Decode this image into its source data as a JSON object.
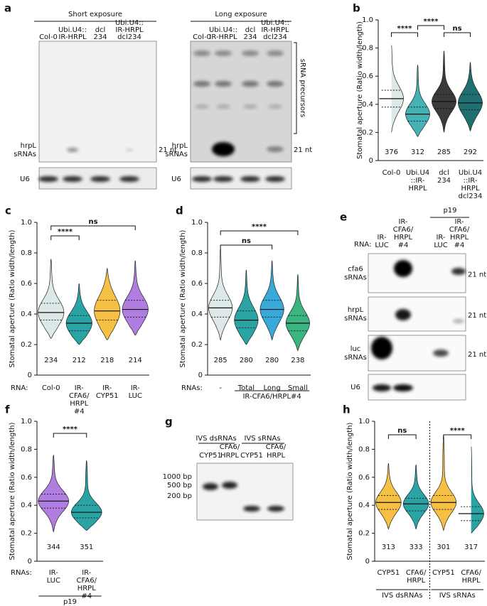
{
  "a": {
    "panel": "a",
    "short": {
      "header": "Short exposure",
      "lanes": [
        [
          "Col-0"
        ],
        [
          "Ubi.U4::",
          "IR-HRPL"
        ],
        [
          "dcl",
          "234"
        ],
        [
          "Ubi.U4::",
          "IR-HRPL",
          "dcl234"
        ]
      ],
      "srnas": [
        "hrpL",
        "sRNAs"
      ],
      "size": "21 nt",
      "loading": "U6"
    },
    "long": {
      "header": "Long exposure",
      "lanes": [
        [
          "Col-0"
        ],
        [
          "Ubi.U4::",
          "IR-HRPL"
        ],
        [
          "dcl",
          "234"
        ],
        [
          "Ubi.U4::",
          "IR-HRPL",
          "dcl234"
        ]
      ],
      "srnas": [
        "hrpL",
        "sRNAs"
      ],
      "size": "21 nt",
      "loading": "U6",
      "precursors": "sRNA precursors"
    }
  },
  "e": {
    "panel": "e",
    "rna": "RNA:",
    "p19": "p19",
    "lanes": [
      [
        "IR-",
        "LUC"
      ],
      [
        "IR-",
        "CFA6/",
        "HRPL",
        "#4"
      ],
      [
        "IR-",
        "LUC"
      ],
      [
        "IR-",
        "CFA6/",
        "HRPL",
        "#4"
      ]
    ],
    "rows": [
      [
        "cfa6",
        "sRNAs"
      ],
      [
        "hrpL",
        "sRNAs"
      ],
      [
        "luc",
        "sRNAs"
      ],
      [
        "U6"
      ]
    ],
    "size": "21 nt"
  },
  "g": {
    "panel": "g",
    "groups": [
      "IVS dsRNAs",
      "IVS sRNAs"
    ],
    "lanes": [
      [
        "CYP51"
      ],
      [
        "CFA6/",
        "HRPL"
      ],
      [
        "CYP51"
      ],
      [
        "CFA6/",
        "HRPL"
      ]
    ],
    "markers": [
      "1000 bp",
      "500 bp",
      "200 bp"
    ]
  },
  "chart_data": [
    {
      "type": "violin",
      "panel": "b",
      "ylabel": "Stomatal aperture (Ratio width/length)",
      "ylim": [
        0,
        1
      ],
      "yticks": [
        0,
        0.2,
        0.4,
        0.6,
        0.8,
        {
          "value": 1,
          "label": "1.0"
        }
      ],
      "categories": [
        [
          "Col-0"
        ],
        [
          "Ubi.U4",
          "::IR-",
          "HRPL"
        ],
        [
          "dcl",
          "234"
        ],
        [
          "Ubi.U4",
          "::IR-",
          "HRPL",
          "dcl234"
        ]
      ],
      "n": [
        376,
        312,
        285,
        292
      ],
      "violins": [
        {
          "color": "#dde9e8",
          "min": 0.2,
          "q1": 0.38,
          "median": 0.44,
          "q3": 0.5,
          "max": 0.83
        },
        {
          "color": "#45b3b5",
          "min": 0.17,
          "q1": 0.28,
          "median": 0.33,
          "q3": 0.38,
          "max": 0.68
        },
        {
          "color": "#3a3a3a",
          "min": 0.2,
          "q1": 0.37,
          "median": 0.42,
          "q3": 0.47,
          "max": 0.78
        },
        {
          "color": "#1f6e70",
          "min": 0.21,
          "q1": 0.36,
          "median": 0.41,
          "q3": 0.47,
          "max": 0.7
        }
      ],
      "significance": [
        "****",
        "****",
        "ns"
      ]
    },
    {
      "type": "violin",
      "panel": "c",
      "ylabel": "Stomatal aperture (Ratio width/length)",
      "ylim": [
        0,
        1
      ],
      "yticks": [
        0,
        0.2,
        0.4,
        0.6,
        0.8,
        {
          "value": 1,
          "label": "1.0"
        }
      ],
      "prefix": "RNA:",
      "categories": [
        [
          "Col-0"
        ],
        [
          "IR-",
          "CFA6/",
          "HRPL",
          "#4"
        ],
        [
          "IR-",
          "CYP51"
        ],
        [
          "IR-",
          "LUC"
        ]
      ],
      "n": [
        234,
        212,
        218,
        214
      ],
      "violins": [
        {
          "color": "#dde9e8",
          "min": 0.24,
          "q1": 0.36,
          "median": 0.41,
          "q3": 0.47,
          "max": 0.76
        },
        {
          "color": "#2aa3a5",
          "min": 0.2,
          "q1": 0.29,
          "median": 0.34,
          "q3": 0.39,
          "max": 0.6
        },
        {
          "color": "#f6c044",
          "min": 0.23,
          "q1": 0.36,
          "median": 0.42,
          "q3": 0.49,
          "max": 0.7
        },
        {
          "color": "#b07de0",
          "min": 0.26,
          "q1": 0.38,
          "median": 0.43,
          "q3": 0.49,
          "max": 0.75
        }
      ],
      "significance": [
        "****",
        "ns"
      ]
    },
    {
      "type": "violin",
      "panel": "d",
      "ylabel": "Stomatal aperture (Ratio width/length)",
      "ylim": [
        0,
        1
      ],
      "yticks": [
        0,
        0.2,
        0.4,
        0.6,
        0.8,
        {
          "value": 1,
          "label": "1.0"
        }
      ],
      "prefix": "RNAs:",
      "categories": [
        [
          "-"
        ],
        [
          "Total"
        ],
        [
          "Long"
        ],
        [
          "Small"
        ]
      ],
      "n": [
        285,
        280,
        280,
        238
      ],
      "groups": [
        "IR-CFA6/HRPL#4"
      ],
      "violins": [
        {
          "color": "#dde9e8",
          "min": 0.23,
          "q1": 0.38,
          "median": 0.44,
          "q3": 0.49,
          "max": 0.83
        },
        {
          "color": "#2aa3a5",
          "min": 0.2,
          "q1": 0.31,
          "median": 0.36,
          "q3": 0.42,
          "max": 0.69
        },
        {
          "color": "#38a9d8",
          "min": 0.23,
          "q1": 0.38,
          "median": 0.43,
          "q3": 0.49,
          "max": 0.75
        },
        {
          "color": "#3bb580",
          "min": 0.16,
          "q1": 0.29,
          "median": 0.34,
          "q3": 0.39,
          "max": 0.66
        }
      ],
      "significance": [
        "ns",
        "****"
      ]
    },
    {
      "type": "violin",
      "panel": "f",
      "ylabel": "Stomatal aperture (Ratio width/length)",
      "ylim": [
        0,
        1
      ],
      "yticks": [
        0,
        0.2,
        0.4,
        0.6,
        0.8,
        {
          "value": 1,
          "label": "1.0"
        }
      ],
      "prefix": "RNAs:",
      "categories": [
        [
          "IR-",
          "LUC"
        ],
        [
          "IR-",
          "CFA6/",
          "HRPL",
          "#4"
        ]
      ],
      "n": [
        344,
        351
      ],
      "groups": [
        "p19"
      ],
      "violins": [
        {
          "color": "#b07de0",
          "min": 0.21,
          "q1": 0.38,
          "median": 0.43,
          "q3": 0.48,
          "max": 0.76
        },
        {
          "color": "#2aa3a5",
          "min": 0.22,
          "q1": 0.31,
          "median": 0.35,
          "q3": 0.4,
          "max": 0.72
        }
      ],
      "significance": [
        "****"
      ]
    },
    {
      "type": "violin",
      "panel": "h",
      "ylabel": "Stomatal aperture (Ratio width/length)",
      "ylim": [
        0,
        1
      ],
      "yticks": [
        0,
        0.2,
        0.4,
        0.6,
        0.8,
        {
          "value": 1,
          "label": "1.0"
        }
      ],
      "categories": [
        [
          "CYP51"
        ],
        [
          "CFA6/",
          "HRPL"
        ],
        [
          "CYP51"
        ],
        [
          "CFA6/",
          "HRPL"
        ]
      ],
      "n": [
        313,
        333,
        301,
        317
      ],
      "groups": [
        "IVS dsRNAs",
        "IVS sRNAs"
      ],
      "violins": [
        {
          "color": "#f6c044",
          "min": 0.23,
          "q1": 0.37,
          "median": 0.42,
          "q3": 0.47,
          "max": 0.7
        },
        {
          "color": "#2aa3a5",
          "min": 0.23,
          "q1": 0.36,
          "median": 0.41,
          "q3": 0.45,
          "max": 0.69
        },
        {
          "color": "#f6c044",
          "min": 0.22,
          "q1": 0.37,
          "median": 0.42,
          "q3": 0.47,
          "max": 0.9
        },
        {
          "color": "#2aa3a5",
          "min": 0.2,
          "q1": 0.29,
          "median": 0.34,
          "q3": 0.39,
          "max": 0.83
        }
      ],
      "significance": [
        "ns",
        "****"
      ]
    }
  ]
}
